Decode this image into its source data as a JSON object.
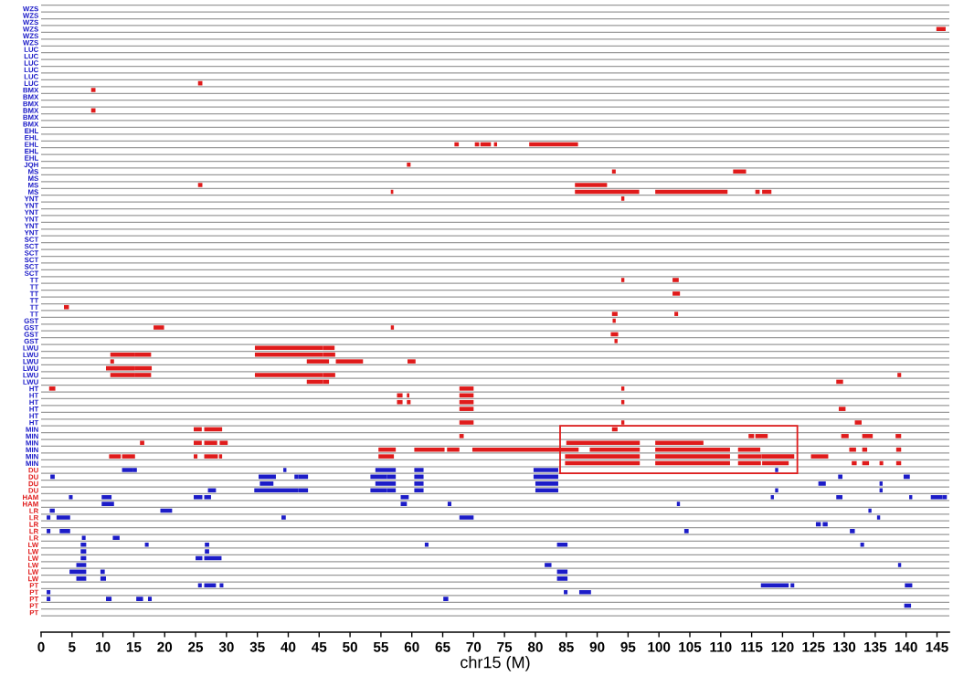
{
  "chart_data": [
    {
      "type": "bar",
      "orientation": "horizontal",
      "xlim": [
        0,
        147
      ],
      "xticks": [
        0,
        5,
        10,
        15,
        20,
        25,
        30,
        35,
        40,
        45,
        50,
        55,
        60,
        65,
        70,
        75,
        80,
        85,
        90,
        95,
        100,
        105,
        110,
        115,
        120,
        125,
        130,
        135,
        140,
        145
      ],
      "tick_labels": "y",
      "grid": "y",
      "categories": [
        "WZS",
        "WZS",
        "WZS",
        "WZS",
        "WZS",
        "WZS",
        "LUC",
        "LUC",
        "LUC",
        "LUC",
        "LUC",
        "LUC",
        "BMX",
        "BMX",
        "BMX",
        "BMX",
        "BMX",
        "BMX",
        "EHL",
        "EHL",
        "EHL",
        "EHL",
        "EHL",
        "JQH",
        "MS",
        "MS",
        "MS",
        "MS",
        "YNT",
        "YNT",
        "YNT",
        "YNT",
        "YNT",
        "YNT",
        "SCT",
        "SCT",
        "SCT",
        "SCT",
        "SCT",
        "SCT",
        "TT",
        "TT",
        "TT",
        "TT",
        "TT",
        "TT",
        "GST",
        "GST",
        "GST",
        "GST",
        "LWU",
        "LWU",
        "LWU",
        "LWU",
        "LWU",
        "LWU",
        "HT",
        "HT",
        "HT",
        "HT",
        "HT",
        "HT",
        "MIN",
        "MIN",
        "MIN",
        "MIN",
        "MIN",
        "MIN"
      ],
      "series": [
        {
          "color": "#e01b1b",
          "base": [
            null,
            null,
            null,
            144.9,
            null,
            null,
            null,
            null,
            null,
            null,
            null,
            25.4,
            8.1,
            null,
            null,
            8.1,
            null,
            null,
            null,
            null,
            66.9,
            null,
            null,
            59.2,
            92.4,
            null,
            25.4,
            56.6,
            93.9,
            null,
            null,
            null,
            null,
            null,
            null,
            null,
            null,
            null,
            null,
            null,
            93.9,
            null,
            102.2,
            null,
            3.7,
            92.4,
            92.5,
            18.2,
            92.2,
            92.8,
            34.6,
            11.2,
            11.2,
            10.5,
            11.2,
            43.0,
            1.3,
            57.6,
            57.6,
            67.7,
            null,
            67.7,
            24.7,
            67.7,
            16.0,
            54.6,
            11.0,
            84.8
          ],
          "values": [
            null,
            null,
            null,
            1.5,
            null,
            null,
            null,
            null,
            null,
            null,
            null,
            0.7,
            0.7,
            null,
            null,
            0.7,
            null,
            null,
            null,
            null,
            0.7,
            null,
            null,
            0.6,
            0.6,
            null,
            0.7,
            0.4,
            0.5,
            null,
            null,
            null,
            null,
            null,
            null,
            null,
            null,
            null,
            null,
            null,
            0.5,
            null,
            1.2,
            null,
            0.8,
            0.9,
            0.5,
            1.7,
            1.2,
            0.5,
            11.0,
            3.9,
            0.6,
            4.6,
            3.9,
            2.6,
            1.0,
            0.9,
            0.9,
            2.3,
            null,
            2.3,
            1.3,
            0.7,
            0.7,
            2.8,
            1.9,
            12.1
          ]
        },
        {
          "color": "#e01b1b",
          "base": [
            null,
            null,
            null,
            null,
            null,
            null,
            null,
            null,
            null,
            null,
            null,
            null,
            null,
            null,
            null,
            null,
            null,
            null,
            null,
            null,
            70.2,
            null,
            null,
            null,
            112.0,
            null,
            86.4,
            86.4,
            null,
            null,
            null,
            null,
            null,
            null,
            null,
            null,
            null,
            null,
            null,
            null,
            102.2,
            null,
            null,
            null,
            null,
            102.5,
            null,
            56.6,
            null,
            null,
            45.6,
            15.1,
            43.0,
            15.1,
            15.1,
            45.6,
            67.7,
            59.2,
            59.2,
            129.1,
            null,
            93.9,
            26.4,
            114.5,
            24.7,
            60.4,
            13.1,
            99.4
          ],
          "values": [
            null,
            null,
            null,
            null,
            null,
            null,
            null,
            null,
            null,
            null,
            null,
            null,
            null,
            null,
            null,
            null,
            null,
            null,
            null,
            null,
            0.7,
            null,
            null,
            null,
            2.1,
            null,
            5.2,
            10.4,
            null,
            null,
            null,
            null,
            null,
            null,
            null,
            null,
            null,
            null,
            null,
            null,
            1.0,
            null,
            null,
            null,
            null,
            0.6,
            null,
            0.5,
            null,
            null,
            1.9,
            2.7,
            3.6,
            2.8,
            2.7,
            1.0,
            2.3,
            0.4,
            0.6,
            1.1,
            null,
            0.5,
            2.9,
            0.9,
            1.3,
            4.9,
            2.1,
            12.1
          ]
        },
        {
          "color": "#e01b1b",
          "base": [
            null,
            null,
            null,
            null,
            null,
            null,
            null,
            null,
            null,
            null,
            null,
            null,
            null,
            null,
            null,
            null,
            null,
            null,
            null,
            null,
            71.1,
            null,
            null,
            null,
            null,
            null,
            null,
            99.4,
            null,
            null,
            null,
            null,
            null,
            null,
            null,
            null,
            null,
            null,
            null,
            null,
            null,
            null,
            null,
            null,
            null,
            null,
            null,
            null,
            null,
            null,
            null,
            34.6,
            47.7,
            null,
            34.6,
            128.7,
            93.9,
            67.7,
            67.7,
            null,
            null,
            131.7,
            92.4,
            115.6,
            26.4,
            65.7,
            24.7,
            112.8
          ],
          "values": [
            null,
            null,
            null,
            null,
            null,
            null,
            null,
            null,
            null,
            null,
            null,
            null,
            null,
            null,
            null,
            null,
            null,
            null,
            null,
            null,
            1.7,
            null,
            null,
            null,
            null,
            null,
            null,
            11.7,
            null,
            null,
            null,
            null,
            null,
            null,
            null,
            null,
            null,
            null,
            null,
            null,
            null,
            null,
            null,
            null,
            null,
            null,
            null,
            null,
            null,
            null,
            null,
            11.0,
            4.4,
            null,
            11.0,
            1.1,
            0.5,
            2.3,
            2.3,
            null,
            null,
            1.1,
            0.9,
            2.0,
            2.1,
            2.0,
            0.6,
            3.7
          ]
        },
        {
          "color": "#e01b1b",
          "base": [
            null,
            null,
            null,
            null,
            null,
            null,
            null,
            null,
            null,
            null,
            null,
            null,
            null,
            null,
            null,
            null,
            null,
            null,
            null,
            null,
            73.3,
            null,
            null,
            null,
            null,
            null,
            null,
            115.6,
            null,
            null,
            null,
            null,
            null,
            null,
            null,
            null,
            null,
            null,
            null,
            null,
            null,
            null,
            null,
            null,
            null,
            null,
            null,
            null,
            null,
            null,
            null,
            45.6,
            59.3,
            null,
            45.6,
            null,
            null,
            null,
            93.9,
            null,
            null,
            null,
            null,
            129.5,
            28.9,
            69.8,
            26.4,
            116.7
          ],
          "values": [
            null,
            null,
            null,
            null,
            null,
            null,
            null,
            null,
            null,
            null,
            null,
            null,
            null,
            null,
            null,
            null,
            null,
            null,
            null,
            null,
            0.5,
            null,
            null,
            null,
            null,
            null,
            null,
            0.7,
            null,
            null,
            null,
            null,
            null,
            null,
            null,
            null,
            null,
            null,
            null,
            null,
            null,
            null,
            null,
            null,
            null,
            null,
            null,
            null,
            null,
            null,
            null,
            2.0,
            1.3,
            null,
            2.0,
            null,
            null,
            null,
            0.5,
            null,
            null,
            null,
            null,
            1.2,
            1.3,
            17.2,
            2.2,
            4.3
          ]
        },
        {
          "color": "#e01b1b",
          "base": [
            null,
            null,
            null,
            null,
            null,
            null,
            null,
            null,
            null,
            null,
            null,
            null,
            null,
            null,
            null,
            null,
            null,
            null,
            null,
            null,
            79.0,
            null,
            null,
            null,
            null,
            null,
            null,
            116.7,
            null,
            null,
            null,
            null,
            null,
            null,
            null,
            null,
            null,
            null,
            null,
            null,
            null,
            null,
            null,
            null,
            null,
            null,
            null,
            null,
            null,
            null,
            null,
            null,
            null,
            null,
            138.6,
            null,
            null,
            null,
            null,
            null,
            null,
            null,
            null,
            132.9,
            85.0,
            88.8,
            28.8,
            131.2
          ],
          "values": [
            null,
            null,
            null,
            null,
            null,
            null,
            null,
            null,
            null,
            null,
            null,
            null,
            null,
            null,
            null,
            null,
            null,
            null,
            null,
            null,
            7.9,
            null,
            null,
            null,
            null,
            null,
            null,
            1.5,
            null,
            null,
            null,
            null,
            null,
            null,
            null,
            null,
            null,
            null,
            null,
            null,
            null,
            null,
            null,
            null,
            null,
            null,
            null,
            null,
            null,
            null,
            null,
            null,
            null,
            null,
            0.6,
            null,
            null,
            null,
            null,
            null,
            null,
            null,
            null,
            1.7,
            11.9,
            8.1,
            0.5,
            0.8
          ]
        },
        {
          "color": "#e01b1b",
          "base": [
            null,
            null,
            null,
            null,
            null,
            null,
            null,
            null,
            null,
            null,
            null,
            null,
            null,
            null,
            null,
            null,
            null,
            null,
            null,
            null,
            null,
            null,
            null,
            null,
            null,
            null,
            null,
            null,
            null,
            null,
            null,
            null,
            null,
            null,
            null,
            null,
            null,
            null,
            null,
            null,
            null,
            null,
            null,
            null,
            null,
            null,
            null,
            null,
            null,
            null,
            null,
            null,
            null,
            null,
            null,
            null,
            null,
            null,
            null,
            null,
            null,
            null,
            null,
            138.3,
            99.4,
            99.4,
            54.6,
            132.9
          ],
          "values": [
            null,
            null,
            null,
            null,
            null,
            null,
            null,
            null,
            null,
            null,
            null,
            null,
            null,
            null,
            null,
            null,
            null,
            null,
            null,
            null,
            null,
            null,
            null,
            null,
            null,
            null,
            null,
            null,
            null,
            null,
            null,
            null,
            null,
            null,
            null,
            null,
            null,
            null,
            null,
            null,
            null,
            null,
            null,
            null,
            null,
            null,
            null,
            null,
            null,
            null,
            null,
            null,
            null,
            null,
            null,
            null,
            null,
            null,
            null,
            null,
            null,
            null,
            null,
            0.9,
            7.8,
            12.1,
            2.5,
            1.1
          ]
        },
        {
          "color": "#e01b1b",
          "base": [
            null,
            null,
            null,
            null,
            null,
            null,
            null,
            null,
            null,
            null,
            null,
            null,
            null,
            null,
            null,
            null,
            null,
            null,
            null,
            null,
            null,
            null,
            null,
            null,
            null,
            null,
            null,
            null,
            null,
            null,
            null,
            null,
            null,
            null,
            null,
            null,
            null,
            null,
            null,
            null,
            null,
            null,
            null,
            null,
            null,
            null,
            null,
            null,
            null,
            null,
            null,
            null,
            null,
            null,
            null,
            null,
            null,
            null,
            null,
            null,
            null,
            null,
            null,
            null,
            null,
            112.8,
            84.8,
            135.7
          ],
          "values": [
            null,
            null,
            null,
            null,
            null,
            null,
            null,
            null,
            null,
            null,
            null,
            null,
            null,
            null,
            null,
            null,
            null,
            null,
            null,
            null,
            null,
            null,
            null,
            null,
            null,
            null,
            null,
            null,
            null,
            null,
            null,
            null,
            null,
            null,
            null,
            null,
            null,
            null,
            null,
            null,
            null,
            null,
            null,
            null,
            null,
            null,
            null,
            null,
            null,
            null,
            null,
            null,
            null,
            null,
            null,
            null,
            null,
            null,
            null,
            null,
            null,
            null,
            null,
            null,
            null,
            3.6,
            12.1,
            0.6
          ]
        },
        {
          "color": "#e01b1b",
          "base": [
            null,
            null,
            null,
            null,
            null,
            null,
            null,
            null,
            null,
            null,
            null,
            null,
            null,
            null,
            null,
            null,
            null,
            null,
            null,
            null,
            null,
            null,
            null,
            null,
            null,
            null,
            null,
            null,
            null,
            null,
            null,
            null,
            null,
            null,
            null,
            null,
            null,
            null,
            null,
            null,
            null,
            null,
            null,
            null,
            null,
            null,
            null,
            null,
            null,
            null,
            null,
            null,
            null,
            null,
            null,
            null,
            null,
            null,
            null,
            null,
            null,
            null,
            null,
            null,
            null,
            130.8,
            99.4,
            138.4
          ],
          "values": [
            null,
            null,
            null,
            null,
            null,
            null,
            null,
            null,
            null,
            null,
            null,
            null,
            null,
            null,
            null,
            null,
            null,
            null,
            null,
            null,
            null,
            null,
            null,
            null,
            null,
            null,
            null,
            null,
            null,
            null,
            null,
            null,
            null,
            null,
            null,
            null,
            null,
            null,
            null,
            null,
            null,
            null,
            null,
            null,
            null,
            null,
            null,
            null,
            null,
            null,
            null,
            null,
            null,
            null,
            null,
            null,
            null,
            null,
            null,
            null,
            null,
            null,
            null,
            null,
            null,
            1.1,
            12.1,
            0.8
          ]
        },
        {
          "color": "#e01b1b",
          "base": [
            null,
            null,
            null,
            null,
            null,
            null,
            null,
            null,
            null,
            null,
            null,
            null,
            null,
            null,
            null,
            null,
            null,
            null,
            null,
            null,
            null,
            null,
            null,
            null,
            null,
            null,
            null,
            null,
            null,
            null,
            null,
            null,
            null,
            null,
            null,
            null,
            null,
            null,
            null,
            null,
            null,
            null,
            null,
            null,
            null,
            null,
            null,
            null,
            null,
            null,
            null,
            null,
            null,
            null,
            null,
            null,
            null,
            null,
            null,
            null,
            null,
            null,
            null,
            null,
            null,
            132.9,
            112.8,
            null
          ],
          "values": [
            null,
            null,
            null,
            null,
            null,
            null,
            null,
            null,
            null,
            null,
            null,
            null,
            null,
            null,
            null,
            null,
            null,
            null,
            null,
            null,
            null,
            null,
            null,
            null,
            null,
            null,
            null,
            null,
            null,
            null,
            null,
            null,
            null,
            null,
            null,
            null,
            null,
            null,
            null,
            null,
            null,
            null,
            null,
            null,
            null,
            null,
            null,
            null,
            null,
            null,
            null,
            null,
            null,
            null,
            null,
            null,
            null,
            null,
            null,
            null,
            null,
            null,
            null,
            null,
            null,
            0.8,
            3.8,
            null
          ]
        },
        {
          "color": "#e01b1b",
          "base": [
            null,
            null,
            null,
            null,
            null,
            null,
            null,
            null,
            null,
            null,
            null,
            null,
            null,
            null,
            null,
            null,
            null,
            null,
            null,
            null,
            null,
            null,
            null,
            null,
            null,
            null,
            null,
            null,
            null,
            null,
            null,
            null,
            null,
            null,
            null,
            null,
            null,
            null,
            null,
            null,
            null,
            null,
            null,
            null,
            null,
            null,
            null,
            null,
            null,
            null,
            null,
            null,
            null,
            null,
            null,
            null,
            null,
            null,
            null,
            null,
            null,
            null,
            null,
            null,
            null,
            138.4,
            116.6,
            null
          ],
          "values": [
            null,
            null,
            null,
            null,
            null,
            null,
            null,
            null,
            null,
            null,
            null,
            null,
            null,
            null,
            null,
            null,
            null,
            null,
            null,
            null,
            null,
            null,
            null,
            null,
            null,
            null,
            null,
            null,
            null,
            null,
            null,
            null,
            null,
            null,
            null,
            null,
            null,
            null,
            null,
            null,
            null,
            null,
            null,
            null,
            null,
            null,
            null,
            null,
            null,
            null,
            null,
            null,
            null,
            null,
            null,
            null,
            null,
            null,
            null,
            null,
            null,
            null,
            null,
            null,
            null,
            0.8,
            5.3,
            null
          ]
        },
        {
          "color": "#e01b1b",
          "base": [
            null,
            null,
            null,
            null,
            null,
            null,
            null,
            null,
            null,
            null,
            null,
            null,
            null,
            null,
            null,
            null,
            null,
            null,
            null,
            null,
            null,
            null,
            null,
            null,
            null,
            null,
            null,
            null,
            null,
            null,
            null,
            null,
            null,
            null,
            null,
            null,
            null,
            null,
            null,
            null,
            null,
            null,
            null,
            null,
            null,
            null,
            null,
            null,
            null,
            null,
            null,
            null,
            null,
            null,
            null,
            null,
            null,
            null,
            null,
            null,
            null,
            null,
            null,
            null,
            null,
            null,
            124.6,
            null
          ],
          "values": [
            null,
            null,
            null,
            null,
            null,
            null,
            null,
            null,
            null,
            null,
            null,
            null,
            null,
            null,
            null,
            null,
            null,
            null,
            null,
            null,
            null,
            null,
            null,
            null,
            null,
            null,
            null,
            null,
            null,
            null,
            null,
            null,
            null,
            null,
            null,
            null,
            null,
            null,
            null,
            null,
            null,
            null,
            null,
            null,
            null,
            null,
            null,
            null,
            null,
            null,
            null,
            null,
            null,
            null,
            null,
            null,
            null,
            null,
            null,
            null,
            null,
            null,
            null,
            null,
            null,
            null,
            2.8,
            null
          ]
        }
      ]
    },
    {
      "type": "bar",
      "orientation": "horizontal",
      "xlabel": "chr15 (M)",
      "xlim": [
        0,
        147
      ],
      "xticks": [
        0,
        5,
        10,
        15,
        20,
        25,
        30,
        35,
        40,
        45,
        50,
        55,
        60,
        65,
        70,
        75,
        80,
        85,
        90,
        95,
        100,
        105,
        110,
        115,
        120,
        125,
        130,
        135,
        140,
        145
      ],
      "grid": "y",
      "categories": [
        "DU",
        "DU",
        "DU",
        "DU",
        "HAM",
        "HAM",
        "LR",
        "LR",
        "LR",
        "LR",
        "LR",
        "LW",
        "LW",
        "LW",
        "LW",
        "LW",
        "LW",
        "PT",
        "PT",
        "PT",
        "PT",
        "PT"
      ],
      "series": [
        {
          "color": "#1c1cc8",
          "base": [
            13.1,
            1.5,
            35.4,
            27.0,
            4.5,
            9.8,
            1.4,
            0.9,
            125.4,
            0.9,
            6.6,
            6.4,
            6.4,
            6.4,
            5.7,
            4.6,
            5.7,
            25.4,
            0.9,
            0.9,
            139.7,
            null
          ],
          "values": [
            1.7,
            0.7,
            2.2,
            1.3,
            0.6,
            2.0,
            0.8,
            0.6,
            0.8,
            0.6,
            0.6,
            0.9,
            0.9,
            0.9,
            1.6,
            2.7,
            1.6,
            0.6,
            0.6,
            0.6,
            1.1,
            null
          ]
        },
        {
          "color": "#1c1cc8",
          "base": [
            14.8,
            35.2,
            54.1,
            34.5,
            9.8,
            58.2,
            19.3,
            2.5,
            126.5,
            3.0,
            11.6,
            16.8,
            26.5,
            25.0,
            81.5,
            9.6,
            9.6,
            26.4,
            84.6,
            10.5,
            null,
            null
          ],
          "values": [
            0.7,
            2.8,
            3.3,
            7.1,
            1.6,
            1.0,
            1.9,
            2.2,
            0.8,
            1.7,
            1.1,
            0.6,
            0.7,
            1.1,
            1.1,
            0.7,
            0.9,
            1.9,
            0.6,
            0.9,
            null,
            null
          ]
        },
        {
          "color": "#1c1cc8",
          "base": [
            39.2,
            41.0,
            60.4,
            41.6,
            24.7,
            65.8,
            133.9,
            38.9,
            null,
            104.1,
            null,
            26.5,
            null,
            26.4,
            138.7,
            83.5,
            83.5,
            28.9,
            87.1,
            15.4,
            null,
            null
          ],
          "values": [
            0.5,
            0.6,
            1.5,
            1.6,
            1.4,
            0.6,
            0.5,
            0.7,
            null,
            0.7,
            null,
            0.7,
            null,
            2.8,
            0.5,
            1.7,
            1.7,
            0.6,
            1.9,
            1.1,
            null,
            null
          ]
        },
        {
          "color": "#1c1cc8",
          "base": [
            54.1,
            41.6,
            80.0,
            53.3,
            26.4,
            102.9,
            null,
            67.7,
            null,
            130.9,
            null,
            62.1,
            null,
            null,
            null,
            null,
            null,
            116.5,
            null,
            17.3,
            null,
            null
          ],
          "values": [
            3.3,
            1.6,
            3.7,
            2.7,
            1.1,
            0.5,
            null,
            2.3,
            null,
            0.8,
            null,
            0.6,
            null,
            null,
            null,
            null,
            null,
            4.5,
            null,
            0.6,
            null,
            null
          ]
        },
        {
          "color": "#1c1cc8",
          "base": [
            60.4,
            53.3,
            125.8,
            56.0,
            58.2,
            null,
            null,
            135.3,
            null,
            null,
            null,
            83.5,
            null,
            null,
            null,
            null,
            null,
            121.3,
            null,
            65.1,
            null,
            null
          ],
          "values": [
            1.5,
            2.7,
            1.2,
            1.4,
            1.3,
            null,
            null,
            0.5,
            null,
            null,
            null,
            1.7,
            null,
            null,
            null,
            null,
            null,
            0.6,
            null,
            0.8,
            null,
            null
          ]
        },
        {
          "color": "#1c1cc8",
          "base": [
            79.7,
            56.0,
            135.7,
            60.4,
            118.1,
            null,
            null,
            null,
            null,
            null,
            null,
            132.6,
            null,
            null,
            null,
            null,
            null,
            139.8,
            null,
            null,
            null,
            null
          ],
          "values": [
            4.0,
            1.4,
            0.5,
            1.5,
            0.5,
            null,
            null,
            null,
            null,
            null,
            null,
            0.6,
            null,
            null,
            null,
            null,
            null,
            1.2,
            null,
            null,
            null,
            null
          ]
        },
        {
          "color": "#1c1cc8",
          "base": [
            118.8,
            60.4,
            null,
            80.0,
            128.7,
            null,
            null,
            null,
            null,
            null,
            null,
            null,
            null,
            null,
            null,
            null,
            null,
            null,
            null,
            null,
            null,
            null
          ],
          "values": [
            0.5,
            1.5,
            null,
            3.7,
            1.0,
            null,
            null,
            null,
            null,
            null,
            null,
            null,
            null,
            null,
            null,
            null,
            null,
            null,
            null,
            null,
            null,
            null
          ]
        },
        {
          "color": "#1c1cc8",
          "base": [
            null,
            79.7,
            null,
            118.8,
            140.5,
            null,
            null,
            null,
            null,
            null,
            null,
            null,
            null,
            null,
            null,
            null,
            null,
            null,
            null,
            null,
            null,
            null
          ],
          "values": [
            null,
            4.0,
            null,
            0.5,
            0.5,
            null,
            null,
            null,
            null,
            null,
            null,
            null,
            null,
            null,
            null,
            null,
            null,
            null,
            null,
            null,
            null,
            null
          ]
        },
        {
          "color": "#1c1cc8",
          "base": [
            null,
            129.0,
            null,
            135.7,
            144.0,
            null,
            null,
            null,
            null,
            null,
            null,
            null,
            null,
            null,
            null,
            null,
            null,
            null,
            null,
            null,
            null,
            null
          ],
          "values": [
            null,
            0.7,
            null,
            0.5,
            1.9,
            null,
            null,
            null,
            null,
            null,
            null,
            null,
            null,
            null,
            null,
            null,
            null,
            null,
            null,
            null,
            null,
            null
          ]
        },
        {
          "color": "#1c1cc8",
          "base": [
            null,
            139.6,
            null,
            null,
            145.9,
            null,
            null,
            null,
            null,
            null,
            null,
            null,
            null,
            null,
            null,
            null,
            null,
            null,
            null,
            null,
            null,
            null
          ],
          "values": [
            null,
            1.0,
            null,
            null,
            0.7,
            null,
            null,
            null,
            null,
            null,
            null,
            null,
            null,
            null,
            null,
            null,
            null,
            null,
            null,
            null,
            null,
            null
          ]
        }
      ]
    }
  ]
}
